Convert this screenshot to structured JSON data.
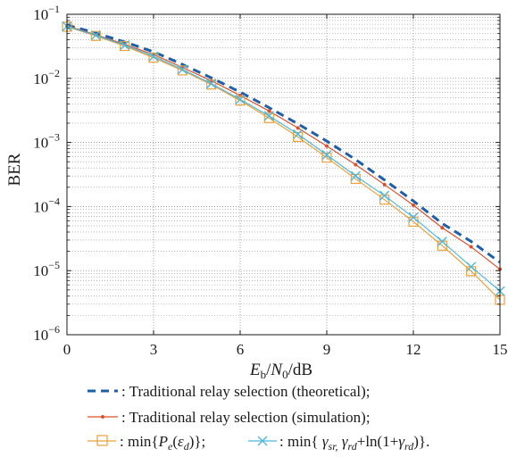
{
  "chart_data": {
    "type": "line",
    "yscale": "log",
    "xlabel": "Eb/N0/dB",
    "xlabel_parts": {
      "main": "E",
      "main_sub": "b",
      "slash1": "/",
      "n": "N",
      "n_sub": "0",
      "unit": "/dB"
    },
    "ylabel": "BER",
    "xlim": [
      0,
      15
    ],
    "ylim": [
      1e-06,
      0.1
    ],
    "xticks": [
      0,
      3,
      6,
      9,
      12,
      15
    ],
    "xtick_labels": [
      "0",
      "3",
      "6",
      "9",
      "12",
      "15"
    ],
    "yticks": [
      1e-06,
      1e-05,
      0.0001,
      0.001,
      0.01,
      0.1
    ],
    "ytick_labels": [
      {
        "base": "10",
        "exp": "−6"
      },
      {
        "base": "10",
        "exp": "−5"
      },
      {
        "base": "10",
        "exp": "−4"
      },
      {
        "base": "10",
        "exp": "−3"
      },
      {
        "base": "10",
        "exp": "−2"
      },
      {
        "base": "10",
        "exp": "−1"
      }
    ],
    "grid": true,
    "legend_position": "bottom",
    "series": [
      {
        "key": "theoretical",
        "color": "#1f5fa8",
        "style": "dashed",
        "marker": "none",
        "x": [
          0,
          1,
          2,
          3,
          4,
          5,
          6,
          7,
          8,
          9,
          10,
          11,
          12,
          13,
          14,
          15
        ],
        "values": [
          0.068,
          0.051,
          0.037,
          0.026,
          0.0165,
          0.0102,
          0.0061,
          0.0035,
          0.00195,
          0.00105,
          0.00054,
          0.00026,
          0.000122,
          5.45e-05,
          2.85e-05,
          1.35e-05
        ]
      },
      {
        "key": "simulation",
        "color": "#d9512c",
        "style": "solid",
        "marker": "dot",
        "x": [
          0,
          1,
          2,
          3,
          4,
          5,
          6,
          7,
          8,
          9,
          10,
          11,
          12,
          13,
          14,
          15
        ],
        "values": [
          0.066,
          0.048,
          0.034,
          0.0235,
          0.0148,
          0.0092,
          0.0054,
          0.0031,
          0.00168,
          0.00088,
          0.00045,
          0.00022,
          0.000105,
          4.65e-05,
          2.35e-05,
          1.05e-05
        ]
      },
      {
        "key": "min_pe",
        "color": "#e8a13c",
        "style": "solid",
        "marker": "square",
        "x": [
          0,
          1,
          2,
          3,
          4,
          5,
          6,
          7,
          8,
          9,
          10,
          11,
          12,
          13,
          14,
          15
        ],
        "values": [
          0.064,
          0.046,
          0.032,
          0.021,
          0.0133,
          0.008,
          0.0045,
          0.0024,
          0.00122,
          0.00058,
          0.00027,
          0.000128,
          5.8e-05,
          2.45e-05,
          9.8e-06,
          3.5e-06
        ]
      },
      {
        "key": "min_gamma",
        "color": "#4fb8dc",
        "style": "solid",
        "marker": "x",
        "x": [
          0,
          1,
          2,
          3,
          4,
          5,
          6,
          7,
          8,
          9,
          10,
          11,
          12,
          13,
          14,
          15
        ],
        "values": [
          0.065,
          0.047,
          0.033,
          0.022,
          0.0138,
          0.0083,
          0.0047,
          0.0026,
          0.00135,
          0.00064,
          0.0003,
          0.000148,
          6.8e-05,
          2.85e-05,
          1.15e-05,
          4.8e-06
        ]
      }
    ],
    "legend": {
      "line1": ": Traditional relay selection (theoretical);",
      "line2": ": Traditional relay selection (simulation);",
      "line3_prefix": ": min{",
      "line3_P": "P",
      "line3_P_sub": "e",
      "line3_open": "(",
      "line3_eps": "ε",
      "line3_eps_sub": "d",
      "line3_close": ")};",
      "line4_prefix": ": min{ ",
      "line4_g1": "γ",
      "line4_g1_sub": "sr,",
      "line4_sep": " ",
      "line4_g2": "γ",
      "line4_g2_sub": "rd",
      "line4_plus": "+ln(1+",
      "line4_g3": "γ",
      "line4_g3_sub": "rd",
      "line4_end": ")}."
    }
  }
}
